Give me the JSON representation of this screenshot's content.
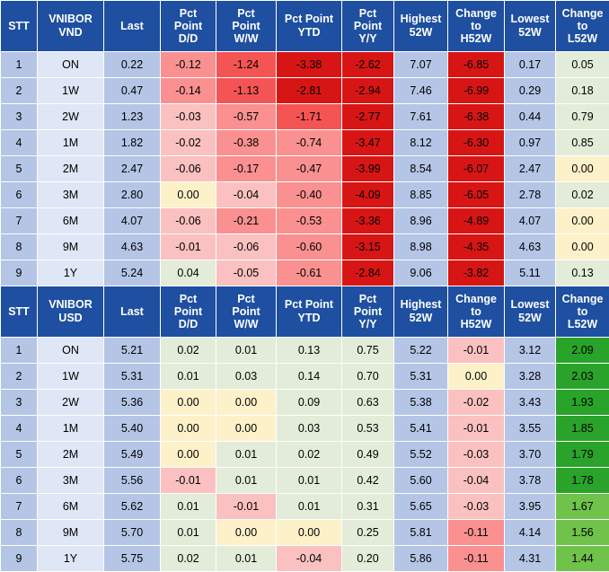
{
  "tables": [
    {
      "headers": {
        "stt": "STT",
        "tenor": [
          "VNIBOR",
          "VND"
        ],
        "last": "Last",
        "dd": [
          "Pct",
          "Point",
          "D/D"
        ],
        "ww": [
          "Pct",
          "Point",
          "W/W"
        ],
        "ytd": [
          "Pct Point",
          "YTD"
        ],
        "yy": [
          "Pct",
          "Point",
          "Y/Y"
        ],
        "high": [
          "Highest",
          "52W"
        ],
        "chigh": [
          "Change",
          "to",
          "H52W"
        ],
        "low": [
          "Lowest",
          "52W"
        ],
        "clow": [
          "Change",
          "to",
          "L52W"
        ]
      },
      "rows": [
        {
          "stt": "1",
          "tenor": "ON",
          "last": "0.22",
          "dd": "-0.12",
          "ww": "-1.24",
          "ytd": "-3.38",
          "yy": "-2.62",
          "high": "7.07",
          "chigh": "-6.85",
          "low": "0.17",
          "clow": "0.05"
        },
        {
          "stt": "2",
          "tenor": "1W",
          "last": "0.47",
          "dd": "-0.14",
          "ww": "-1.13",
          "ytd": "-2.81",
          "yy": "-2.94",
          "high": "7.46",
          "chigh": "-6.99",
          "low": "0.29",
          "clow": "0.18"
        },
        {
          "stt": "3",
          "tenor": "2W",
          "last": "1.23",
          "dd": "-0.03",
          "ww": "-0.57",
          "ytd": "-1.71",
          "yy": "-2.77",
          "high": "7.61",
          "chigh": "-6.38",
          "low": "0.44",
          "clow": "0.79"
        },
        {
          "stt": "4",
          "tenor": "1M",
          "last": "1.82",
          "dd": "-0.02",
          "ww": "-0.38",
          "ytd": "-0.74",
          "yy": "-3.47",
          "high": "8.12",
          "chigh": "-6.30",
          "low": "0.97",
          "clow": "0.85"
        },
        {
          "stt": "5",
          "tenor": "2M",
          "last": "2.47",
          "dd": "-0.06",
          "ww": "-0.17",
          "ytd": "-0.47",
          "yy": "-3.99",
          "high": "8.54",
          "chigh": "-6.07",
          "low": "2.47",
          "clow": "0.00"
        },
        {
          "stt": "6",
          "tenor": "3M",
          "last": "2.80",
          "dd": "0.00",
          "ww": "-0.04",
          "ytd": "-0.40",
          "yy": "-4.09",
          "high": "8.85",
          "chigh": "-6.05",
          "low": "2.78",
          "clow": "0.02"
        },
        {
          "stt": "7",
          "tenor": "6M",
          "last": "4.07",
          "dd": "-0.06",
          "ww": "-0.21",
          "ytd": "-0.53",
          "yy": "-3.36",
          "high": "8.96",
          "chigh": "-4.89",
          "low": "4.07",
          "clow": "0.00"
        },
        {
          "stt": "8",
          "tenor": "9M",
          "last": "4.63",
          "dd": "-0.01",
          "ww": "-0.06",
          "ytd": "-0.60",
          "yy": "-3.15",
          "high": "8.98",
          "chigh": "-4.35",
          "low": "4.63",
          "clow": "0.00"
        },
        {
          "stt": "9",
          "tenor": "1Y",
          "last": "5.24",
          "dd": "0.04",
          "ww": "-0.05",
          "ytd": "-0.61",
          "yy": "-2.84",
          "high": "9.06",
          "chigh": "-3.82",
          "low": "5.11",
          "clow": "0.13"
        }
      ]
    },
    {
      "headers": {
        "stt": "STT",
        "tenor": [
          "VNIBOR",
          "USD"
        ],
        "last": "Last",
        "dd": [
          "Pct",
          "Point",
          "D/D"
        ],
        "ww": [
          "Pct",
          "Point",
          "W/W"
        ],
        "ytd": [
          "Pct Point",
          "YTD"
        ],
        "yy": [
          "Pct",
          "Point",
          "Y/Y"
        ],
        "high": [
          "Highest",
          "52W"
        ],
        "chigh": [
          "Change",
          "to",
          "H52W"
        ],
        "low": [
          "Lowest",
          "52W"
        ],
        "clow": [
          "Change",
          "to",
          "L52W"
        ]
      },
      "rows": [
        {
          "stt": "1",
          "tenor": "ON",
          "last": "5.21",
          "dd": "0.02",
          "ww": "0.01",
          "ytd": "0.13",
          "yy": "0.75",
          "high": "5.22",
          "chigh": "-0.01",
          "low": "3.12",
          "clow": "2.09"
        },
        {
          "stt": "2",
          "tenor": "1W",
          "last": "5.31",
          "dd": "0.01",
          "ww": "0.03",
          "ytd": "0.14",
          "yy": "0.70",
          "high": "5.31",
          "chigh": "0.00",
          "low": "3.28",
          "clow": "2.03"
        },
        {
          "stt": "3",
          "tenor": "2W",
          "last": "5.36",
          "dd": "0.00",
          "ww": "0.00",
          "ytd": "0.09",
          "yy": "0.63",
          "high": "5.38",
          "chigh": "-0.02",
          "low": "3.43",
          "clow": "1.93"
        },
        {
          "stt": "4",
          "tenor": "1M",
          "last": "5.40",
          "dd": "0.00",
          "ww": "0.00",
          "ytd": "0.03",
          "yy": "0.53",
          "high": "5.41",
          "chigh": "-0.01",
          "low": "3.55",
          "clow": "1.85"
        },
        {
          "stt": "5",
          "tenor": "2M",
          "last": "5.49",
          "dd": "0.00",
          "ww": "0.01",
          "ytd": "0.02",
          "yy": "0.49",
          "high": "5.52",
          "chigh": "-0.03",
          "low": "3.70",
          "clow": "1.79"
        },
        {
          "stt": "6",
          "tenor": "3M",
          "last": "5.56",
          "dd": "-0.01",
          "ww": "0.01",
          "ytd": "0.01",
          "yy": "0.42",
          "high": "5.60",
          "chigh": "-0.04",
          "low": "3.78",
          "clow": "1.78"
        },
        {
          "stt": "7",
          "tenor": "6M",
          "last": "5.62",
          "dd": "0.01",
          "ww": "-0.01",
          "ytd": "0.01",
          "yy": "0.31",
          "high": "5.65",
          "chigh": "-0.03",
          "low": "3.95",
          "clow": "1.67"
        },
        {
          "stt": "8",
          "tenor": "9M",
          "last": "5.70",
          "dd": "0.01",
          "ww": "0.00",
          "ytd": "0.00",
          "yy": "0.25",
          "high": "5.81",
          "chigh": "-0.11",
          "low": "4.14",
          "clow": "1.56"
        },
        {
          "stt": "9",
          "tenor": "1Y",
          "last": "5.75",
          "dd": "0.02",
          "ww": "0.01",
          "ytd": "-0.04",
          "yy": "0.20",
          "high": "5.86",
          "chigh": "-0.11",
          "low": "4.31",
          "clow": "1.44"
        }
      ]
    }
  ],
  "colors": {
    "header_bg": "#1e4fa0",
    "neutral_col": "#b4c5e6",
    "tenor_col": "#dfe6f5",
    "positive_light": "#e2ecd8",
    "zero": "#fdf1c9",
    "neg_1": "#fbc0c0",
    "neg_2": "#fa9090",
    "neg_3": "#f55454",
    "neg_4": "#d81515",
    "green_1": "#bfe0a4",
    "green_2": "#6fc24a",
    "green_3": "#29a32a"
  }
}
